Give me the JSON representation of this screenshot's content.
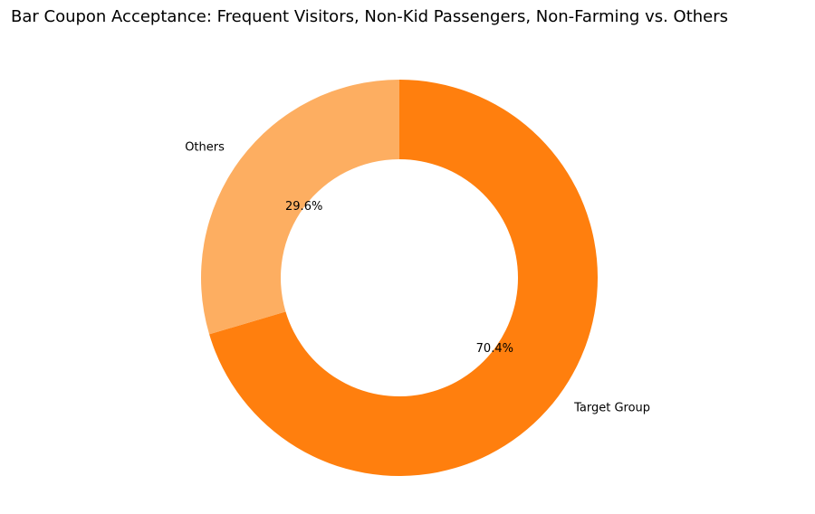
{
  "chart_data": {
    "type": "pie",
    "title": "Bar Coupon Acceptance: Frequent Visitors, Non-Kid Passengers, Non-Farming vs. Others",
    "donut": true,
    "start_angle_deg": 90,
    "direction": "clockwise",
    "legend": "none",
    "slices": [
      {
        "label": "Target Group",
        "value": 70.4,
        "pct_label": "70.4%",
        "color": "#ff7f0e"
      },
      {
        "label": "Others",
        "value": 29.6,
        "pct_label": "29.6%",
        "color": "#fdae61"
      }
    ]
  }
}
